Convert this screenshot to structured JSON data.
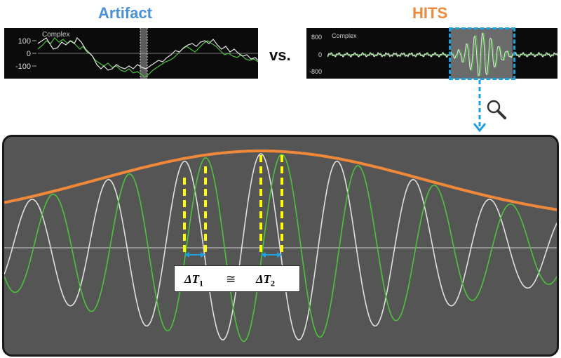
{
  "titles": {
    "artifact": "Artifact",
    "hits": "HITS",
    "vs": "vs."
  },
  "colors": {
    "artifact_title": "#4a90d9",
    "hits_title": "#f0883a",
    "envelope": "#f0883a",
    "white_signal": "#e6e6e6",
    "green_signal": "#4cc23c",
    "markers": "#ffff00",
    "zoom_box": "#1e9fe0",
    "main_panel": "#555555"
  },
  "artifact_panel": {
    "label": "Complex",
    "ticks": [
      "100",
      "0",
      "-100"
    ]
  },
  "hits_panel": {
    "label": "Complex",
    "ticks": [
      "800",
      "0",
      "-800"
    ]
  },
  "icons": {
    "zoom": "magnifier-icon",
    "arrow": "dashed-down-arrow"
  },
  "formula": {
    "delta": "ΔT",
    "sub1": "1",
    "approx": "≅",
    "sub2": "2"
  }
}
